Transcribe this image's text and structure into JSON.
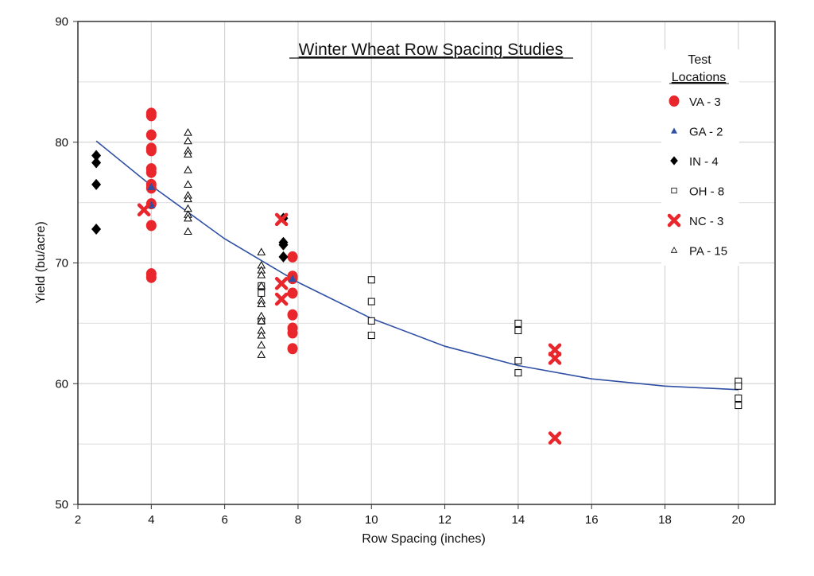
{
  "chart_data": {
    "type": "scatter",
    "title": "Winter Wheat Row Spacing Studies",
    "xlabel": "Row Spacing (inches)",
    "ylabel": "Yield (bu/acre)",
    "xlim": [
      2,
      21
    ],
    "ylim": [
      50,
      90
    ],
    "xticks": [
      2,
      4,
      6,
      8,
      10,
      12,
      14,
      16,
      18,
      20
    ],
    "yticks": [
      50,
      60,
      70,
      80,
      90
    ],
    "grid": true,
    "legend": {
      "title_line1": "Test",
      "title_line2": "Locations",
      "placement": "top-right"
    },
    "series": [
      {
        "name": "VA - 3",
        "marker": "circle",
        "color": "#e8262b",
        "points": [
          [
            4,
            82.4
          ],
          [
            4,
            82.2
          ],
          [
            4,
            80.6
          ],
          [
            4,
            79.5
          ],
          [
            4,
            79.3
          ],
          [
            4,
            77.8
          ],
          [
            4,
            77.5
          ],
          [
            4,
            76.5
          ],
          [
            4,
            76.2
          ],
          [
            4,
            74.9
          ],
          [
            4,
            73.1
          ],
          [
            4,
            69.1
          ],
          [
            4,
            68.8
          ],
          [
            7.85,
            70.5
          ],
          [
            7.85,
            68.9
          ],
          [
            7.85,
            68.7
          ],
          [
            7.85,
            67.5
          ],
          [
            7.85,
            65.7
          ],
          [
            7.85,
            64.6
          ],
          [
            7.85,
            64.2
          ],
          [
            7.85,
            62.9
          ]
        ]
      },
      {
        "name": "GA - 2",
        "marker": "triangle-filled",
        "color": "#2e4fa3",
        "points": [
          [
            4,
            76.3
          ],
          [
            4,
            74.8
          ],
          [
            7.85,
            68.7
          ]
        ]
      },
      {
        "name": "IN - 4",
        "marker": "diamond",
        "color": "#000000",
        "points": [
          [
            2.5,
            78.9
          ],
          [
            2.5,
            78.3
          ],
          [
            2.5,
            76.5
          ],
          [
            2.5,
            72.8
          ],
          [
            7.6,
            73.7
          ],
          [
            7.6,
            71.7
          ],
          [
            7.6,
            71.5
          ],
          [
            7.6,
            70.5
          ]
        ]
      },
      {
        "name": "OH - 8",
        "marker": "square-open",
        "color": "#000000",
        "points": [
          [
            7,
            68.1
          ],
          [
            7,
            67.5
          ],
          [
            7,
            65.2
          ],
          [
            10,
            68.6
          ],
          [
            10,
            66.8
          ],
          [
            10,
            65.2
          ],
          [
            10,
            64.0
          ],
          [
            14,
            65.0
          ],
          [
            14,
            64.4
          ],
          [
            14,
            61.9
          ],
          [
            14,
            60.9
          ],
          [
            20,
            60.2
          ],
          [
            20,
            59.8
          ],
          [
            20,
            58.8
          ],
          [
            20,
            58.2
          ]
        ]
      },
      {
        "name": "NC - 3",
        "marker": "x",
        "color": "#e8262b",
        "points": [
          [
            3.8,
            74.4
          ],
          [
            7.55,
            73.6
          ],
          [
            7.55,
            68.3
          ],
          [
            7.55,
            67.0
          ],
          [
            15,
            62.8
          ],
          [
            15,
            62.1
          ],
          [
            15,
            55.5
          ]
        ]
      },
      {
        "name": "PA - 15",
        "marker": "triangle-open",
        "color": "#000000",
        "points": [
          [
            5,
            80.8
          ],
          [
            5,
            80.1
          ],
          [
            5,
            79.3
          ],
          [
            5,
            79.0
          ],
          [
            5,
            77.7
          ],
          [
            5,
            76.5
          ],
          [
            5,
            75.6
          ],
          [
            5,
            75.3
          ],
          [
            5,
            74.5
          ],
          [
            5,
            74.0
          ],
          [
            5,
            73.7
          ],
          [
            5,
            72.6
          ],
          [
            7,
            70.9
          ],
          [
            7,
            69.8
          ],
          [
            7,
            69.4
          ],
          [
            7,
            69.0
          ],
          [
            7,
            68.1
          ],
          [
            7,
            66.9
          ],
          [
            7,
            66.6
          ],
          [
            7,
            65.6
          ],
          [
            7,
            65.2
          ],
          [
            7,
            64.4
          ],
          [
            7,
            64.0
          ],
          [
            7,
            63.2
          ],
          [
            7,
            62.4
          ]
        ]
      }
    ],
    "trendline": {
      "color": "#2e4fa3",
      "points": [
        [
          2.5,
          80.1
        ],
        [
          4,
          76.4
        ],
        [
          6,
          72.0
        ],
        [
          8,
          68.4
        ],
        [
          10,
          65.4
        ],
        [
          12,
          63.1
        ],
        [
          14,
          61.5
        ],
        [
          16,
          60.4
        ],
        [
          18,
          59.8
        ],
        [
          20,
          59.5
        ]
      ]
    }
  }
}
